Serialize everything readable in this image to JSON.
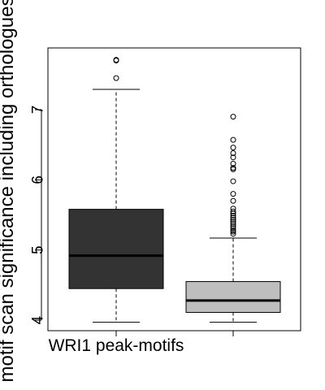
{
  "chart_data": {
    "type": "boxplot",
    "title": "",
    "xlabel": "",
    "ylabel": "motif scan significance including orthologues",
    "ylim": [
      3.85,
      7.88
    ],
    "yticks": [
      4,
      5,
      6,
      7
    ],
    "grid": false,
    "legend": "none",
    "categories": [
      "WRI1 peak-motifs",
      ""
    ],
    "boxes": [
      {
        "label": "WRI1 peak-motifs",
        "whisker_low": 3.97,
        "q1": 4.45,
        "median": 4.92,
        "q3": 5.58,
        "whisker_high": 7.29,
        "outliers": [
          7.45,
          7.7,
          7.71
        ],
        "color": "#333333"
      },
      {
        "label": "",
        "whisker_low": 3.97,
        "q1": 4.11,
        "median": 4.28,
        "q3": 4.55,
        "whisker_high": 5.17,
        "outliers": [
          5.23,
          5.26,
          5.28,
          5.31,
          5.34,
          5.37,
          5.4,
          5.43,
          5.46,
          5.49,
          5.52,
          5.55,
          5.59,
          5.7,
          5.8,
          5.98,
          6.15,
          6.17,
          6.23,
          6.32,
          6.38,
          6.46,
          6.57,
          6.9
        ],
        "color": "#bebebe"
      }
    ]
  }
}
